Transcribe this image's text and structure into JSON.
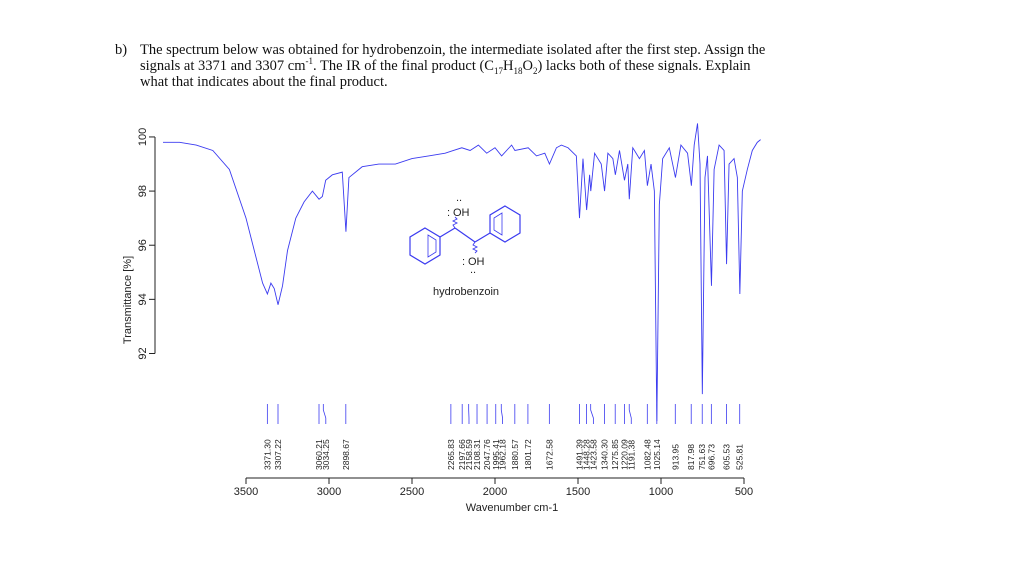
{
  "question": {
    "label": "b)",
    "parts": [
      "The spectrum below was obtained for hydrobenzoin, the intermediate isolated after the first step. Assign the signals at 3371 and 3307 cm",
      "-1",
      ". The IR of the final product (C",
      "17",
      "H",
      "18",
      "O",
      "2",
      ") lacks both of these signals. Explain what that indicates about the final product."
    ]
  },
  "chart_data": {
    "type": "line",
    "xlabel": "Wavenumber cm-1",
    "ylabel": "Transmittance [%]",
    "xlim": [
      4000,
      400
    ],
    "ylim": [
      87.4,
      100.7
    ],
    "xticks": [
      3500,
      3000,
      2500,
      2000,
      1500,
      1000,
      500
    ],
    "yticks": [
      92,
      94,
      96,
      98,
      100
    ],
    "series": [
      {
        "color": "#3b3bf0",
        "x": [
          4000,
          3900,
          3800,
          3700,
          3600,
          3500,
          3450,
          3400,
          3371,
          3350,
          3330,
          3307,
          3280,
          3250,
          3200,
          3150,
          3100,
          3060,
          3040,
          3020,
          2980,
          2920,
          2898,
          2880,
          2800,
          2700,
          2600,
          2500,
          2400,
          2300,
          2250,
          2200,
          2150,
          2100,
          2050,
          2000,
          1960,
          1900,
          1880,
          1800,
          1750,
          1700,
          1672,
          1630,
          1600,
          1560,
          1510,
          1491,
          1470,
          1448,
          1430,
          1423,
          1400,
          1360,
          1340,
          1320,
          1290,
          1275,
          1250,
          1220,
          1200,
          1191,
          1170,
          1130,
          1100,
          1082,
          1060,
          1040,
          1025,
          1010,
          990,
          950,
          913,
          880,
          840,
          817,
          800,
          780,
          765,
          751,
          735,
          720,
          696,
          680,
          650,
          620,
          605,
          590,
          560,
          540,
          525,
          510,
          480,
          450,
          420,
          400
        ],
        "values": [
          99.8,
          99.8,
          99.7,
          99.5,
          98.8,
          97.0,
          95.8,
          94.6,
          94.2,
          94.6,
          94.4,
          93.8,
          94.5,
          95.8,
          97.0,
          97.6,
          98.0,
          97.7,
          97.8,
          98.4,
          98.6,
          98.7,
          96.5,
          98.5,
          98.9,
          99.0,
          99.0,
          99.2,
          99.3,
          99.4,
          99.5,
          99.6,
          99.5,
          99.7,
          99.4,
          99.6,
          99.3,
          99.7,
          99.5,
          99.6,
          99.3,
          99.4,
          99.0,
          99.6,
          99.7,
          99.6,
          99.3,
          97.0,
          99.2,
          97.3,
          98.6,
          98.0,
          99.4,
          99.0,
          98.0,
          99.4,
          99.2,
          98.6,
          99.5,
          98.4,
          99.0,
          97.7,
          99.6,
          99.2,
          99.5,
          98.2,
          99.0,
          98.0,
          89.5,
          97.5,
          99.2,
          99.6,
          98.5,
          99.7,
          99.4,
          98.2,
          99.7,
          100.5,
          99.0,
          90.5,
          98.5,
          99.3,
          94.5,
          98.8,
          99.7,
          99.5,
          95.3,
          99.0,
          99.2,
          98.5,
          94.2,
          98.0,
          98.8,
          99.5,
          99.8,
          99.9
        ]
      }
    ],
    "peaks": [
      {
        "value": 3371.3,
        "label": "3371.30"
      },
      {
        "value": 3307.22,
        "label": "3307.22"
      },
      {
        "value": 3060.21,
        "label": "3060.21"
      },
      {
        "value": 3034.25,
        "label": "3034.25"
      },
      {
        "value": 2898.67,
        "label": "2898.67"
      },
      {
        "value": 2265.83,
        "label": "2265.83"
      },
      {
        "value": 2197.66,
        "label": "2197.66"
      },
      {
        "value": 2158.59,
        "label": "2158.59"
      },
      {
        "value": 2108.31,
        "label": "2108.31"
      },
      {
        "value": 2047.76,
        "label": "2047.76"
      },
      {
        "value": 1995.41,
        "label": "1995.41"
      },
      {
        "value": 1962.18,
        "label": "1962.18"
      },
      {
        "value": 1880.57,
        "label": "1880.57"
      },
      {
        "value": 1801.72,
        "label": "1801.72"
      },
      {
        "value": 1672.58,
        "label": "1672.58"
      },
      {
        "value": 1491.39,
        "label": "1491.39"
      },
      {
        "value": 1448.28,
        "label": "1448.28"
      },
      {
        "value": 1423.58,
        "label": "1423.58"
      },
      {
        "value": 1340.3,
        "label": "1340.30"
      },
      {
        "value": 1275.85,
        "label": "1275.85"
      },
      {
        "value": 1220.09,
        "label": "1220.09"
      },
      {
        "value": 1191.38,
        "label": "1191.38"
      },
      {
        "value": 1082.48,
        "label": "1082.48"
      },
      {
        "value": 1025.14,
        "label": "1025.14"
      },
      {
        "value": 913.95,
        "label": "913.95"
      },
      {
        "value": 817.98,
        "label": "817.98"
      },
      {
        "value": 751.63,
        "label": "751.63"
      },
      {
        "value": 696.73,
        "label": "696.73"
      },
      {
        "value": 605.53,
        "label": "605.53"
      },
      {
        "value": 525.81,
        "label": "525.81"
      }
    ],
    "molecule_labels": [
      "OH",
      "OH"
    ],
    "molecule_name": "hydrobenzoin"
  }
}
